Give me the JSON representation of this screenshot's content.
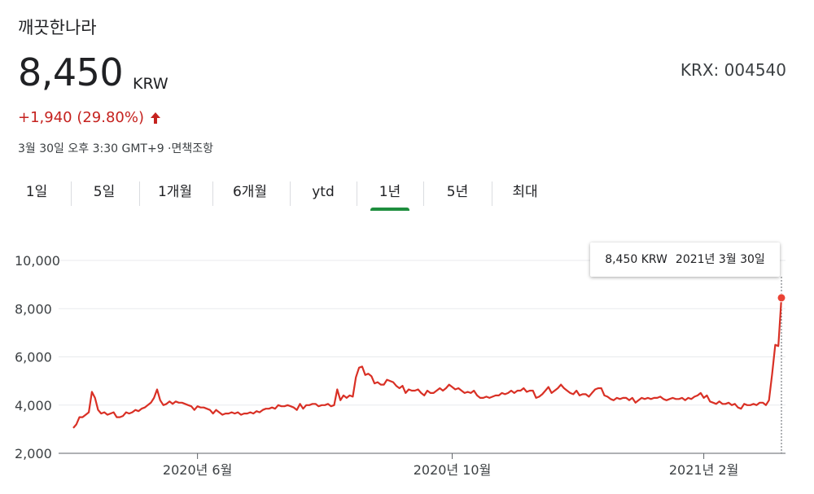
{
  "stock": {
    "name": "깨끗한나라",
    "price": "8,450",
    "currency": "KRW",
    "ticker": "KRX: 004540",
    "change": "+1,940 (29.80%)",
    "direction_icon": "arrow-up-icon",
    "timestamp": "3월 30일 오후 3:30 GMT+9 ·면책조항"
  },
  "tabs": [
    {
      "label": "1일",
      "active": false
    },
    {
      "label": "5일",
      "active": false
    },
    {
      "label": "1개월",
      "active": false
    },
    {
      "label": "6개월",
      "active": false
    },
    {
      "label": "ytd",
      "active": false
    },
    {
      "label": "1년",
      "active": true
    },
    {
      "label": "5년",
      "active": false
    },
    {
      "label": "최대",
      "active": false
    }
  ],
  "tooltip": {
    "value": "8,450 KRW",
    "date": "2021년 3월 30일"
  },
  "colors": {
    "line": "#d93025",
    "negative_change": "#c5221f",
    "active_tab": "#1e8e3e",
    "grid": "#e8eaed"
  },
  "chart_data": {
    "type": "line",
    "ylim": [
      2000,
      10000
    ],
    "yticks": [
      "10,000",
      "8,000",
      "6,000",
      "4,000",
      "2,000"
    ],
    "ytick_values": [
      10000,
      8000,
      6000,
      4000,
      2000
    ],
    "xticks": [
      {
        "label": "2020년 6월",
        "index": 40
      },
      {
        "label": "2020년 10월",
        "index": 122
      },
      {
        "label": "2021년 2월",
        "index": 203
      }
    ],
    "grid": true,
    "series": [
      {
        "values": [
          3050,
          3200,
          3500,
          3500,
          3600,
          3700,
          4550,
          4300,
          3800,
          3650,
          3700,
          3600,
          3650,
          3700,
          3500,
          3500,
          3550,
          3700,
          3650,
          3700,
          3800,
          3750,
          3850,
          3900,
          4000,
          4100,
          4300,
          4650,
          4200,
          4000,
          4050,
          4150,
          4050,
          4150,
          4100,
          4100,
          4050,
          4000,
          3950,
          3800,
          3950,
          3900,
          3900,
          3850,
          3800,
          3650,
          3800,
          3700,
          3600,
          3650,
          3650,
          3700,
          3650,
          3700,
          3600,
          3650,
          3650,
          3700,
          3650,
          3750,
          3700,
          3800,
          3850,
          3850,
          3900,
          3850,
          4000,
          3950,
          3950,
          4000,
          3950,
          3900,
          3800,
          4050,
          3850,
          4000,
          4000,
          4050,
          4050,
          3950,
          4000,
          4000,
          4050,
          3950,
          4000,
          4650,
          4200,
          4400,
          4300,
          4400,
          4350,
          5150,
          5550,
          5600,
          5250,
          5300,
          5200,
          4900,
          4950,
          4850,
          4850,
          5050,
          5000,
          4950,
          4800,
          4700,
          4800,
          4500,
          4650,
          4600,
          4600,
          4650,
          4500,
          4400,
          4600,
          4500,
          4500,
          4600,
          4700,
          4600,
          4700,
          4850,
          4750,
          4650,
          4700,
          4600,
          4500,
          4550,
          4500,
          4600,
          4400,
          4300,
          4300,
          4350,
          4300,
          4350,
          4400,
          4400,
          4500,
          4450,
          4500,
          4600,
          4500,
          4600,
          4600,
          4700,
          4550,
          4600,
          4600,
          4300,
          4350,
          4450,
          4600,
          4750,
          4500,
          4600,
          4700,
          4850,
          4700,
          4600,
          4500,
          4450,
          4600,
          4400,
          4450,
          4450,
          4350,
          4500,
          4650,
          4700,
          4700,
          4400,
          4350,
          4250,
          4200,
          4300,
          4250,
          4300,
          4300,
          4200,
          4300,
          4100,
          4200,
          4300,
          4250,
          4300,
          4250,
          4300,
          4300,
          4350,
          4250,
          4200,
          4250,
          4300,
          4250,
          4250,
          4300,
          4200,
          4300,
          4250,
          4350,
          4400,
          4500,
          4300,
          4400,
          4150,
          4100,
          4050,
          4150,
          4050,
          4050,
          4100,
          4000,
          4050,
          3900,
          3850,
          4050,
          4000,
          4000,
          4050,
          4000,
          4100,
          4100,
          4000,
          4200,
          5300,
          6500,
          6450,
          8450
        ]
      }
    ]
  }
}
